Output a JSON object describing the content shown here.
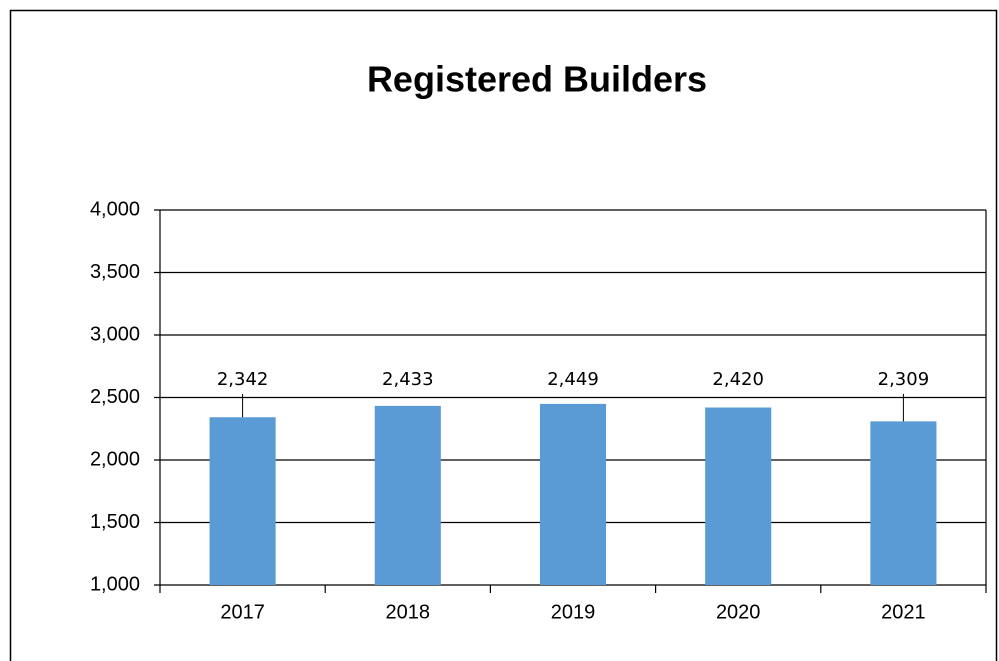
{
  "chart_data": {
    "type": "bar",
    "title": "Registered Builders",
    "categories": [
      "2017",
      "2018",
      "2019",
      "2020",
      "2021"
    ],
    "values": [
      2342,
      2433,
      2449,
      2420,
      2309
    ],
    "value_labels": [
      "2,342",
      "2,433",
      "2,449",
      "2,420",
      "2,309"
    ],
    "color": "#5b9bd5",
    "ylim": [
      1000,
      4000
    ],
    "yticks": [
      {
        "value": 1000,
        "label": "1,000"
      },
      {
        "value": 1500,
        "label": "1,500"
      },
      {
        "value": 2000,
        "label": "2,000"
      },
      {
        "value": 2500,
        "label": "2,500"
      },
      {
        "value": 3000,
        "label": "3,000"
      },
      {
        "value": 3500,
        "label": "3,500"
      },
      {
        "value": 4000,
        "label": "4,000"
      }
    ],
    "grid": true
  }
}
